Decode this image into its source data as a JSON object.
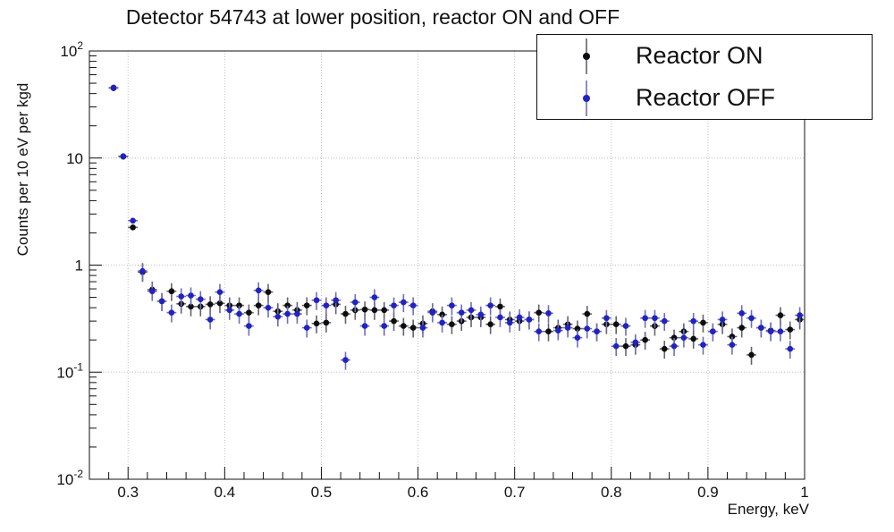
{
  "title": "Detector 54743 at lower position, reactor ON and OFF",
  "chart_data": {
    "type": "scatter",
    "title": "Detector 54743 at lower position, reactor ON and OFF",
    "xlabel": "Energy, keV",
    "ylabel": "Counts per 10 eV per kgd",
    "x_range": [
      0.26,
      1.0
    ],
    "y_range": [
      0.01,
      100
    ],
    "y_scale": "log",
    "grid": "dotted lines at major ticks, both axes",
    "legend_position": "top-right",
    "x_ticks_major": [
      0.3,
      0.4,
      0.5,
      0.6,
      0.7,
      0.8,
      0.9,
      1.0
    ],
    "x_tick_labels": [
      "0.3",
      "0.4",
      "0.5",
      "0.6",
      "0.7",
      "0.8",
      "0.9",
      "1"
    ],
    "x_minor_tick_step": 0.02,
    "y_ticks_major": [
      100,
      10,
      1,
      0.1,
      0.01
    ],
    "y_tick_labels": [
      "10^2",
      "10",
      "1",
      "10^-1",
      "10^-2"
    ],
    "bin_width_kev": 0.01,
    "x": [
      0.285,
      0.295,
      0.305,
      0.315,
      0.325,
      0.335,
      0.345,
      0.355,
      0.365,
      0.375,
      0.385,
      0.395,
      0.405,
      0.415,
      0.425,
      0.435,
      0.445,
      0.455,
      0.465,
      0.475,
      0.485,
      0.495,
      0.505,
      0.515,
      0.525,
      0.535,
      0.545,
      0.555,
      0.565,
      0.575,
      0.585,
      0.595,
      0.605,
      0.615,
      0.625,
      0.635,
      0.645,
      0.655,
      0.665,
      0.675,
      0.685,
      0.695,
      0.705,
      0.715,
      0.725,
      0.735,
      0.745,
      0.755,
      0.765,
      0.775,
      0.785,
      0.795,
      0.805,
      0.815,
      0.825,
      0.835,
      0.845,
      0.855,
      0.865,
      0.875,
      0.885,
      0.895,
      0.905,
      0.915,
      0.925,
      0.935,
      0.945,
      0.955,
      0.965,
      0.975,
      0.985,
      0.995
    ],
    "series": [
      {
        "name": "Reactor ON",
        "marker_color": "#0d0d0d",
        "errorbar_color": "#63636f",
        "values": [
          45,
          10.3,
          2.25,
          0.86,
          0.59,
          0.46,
          0.57,
          0.435,
          0.41,
          0.41,
          0.43,
          0.44,
          0.42,
          0.42,
          0.36,
          0.42,
          0.56,
          0.37,
          0.42,
          0.38,
          0.42,
          0.285,
          0.29,
          0.43,
          0.35,
          0.38,
          0.385,
          0.38,
          0.38,
          0.3,
          0.27,
          0.26,
          0.285,
          0.37,
          0.345,
          0.28,
          0.3,
          0.325,
          0.325,
          0.28,
          0.41,
          0.31,
          0.3,
          0.31,
          0.36,
          0.24,
          0.26,
          0.28,
          0.255,
          0.35,
          0.24,
          0.28,
          0.28,
          0.175,
          0.18,
          0.2,
          0.27,
          0.165,
          0.21,
          0.24,
          0.205,
          0.29,
          0.24,
          0.28,
          0.215,
          0.26,
          0.145,
          0.26,
          0.245,
          0.34,
          0.25,
          0.31
        ]
      },
      {
        "name": "Reactor OFF",
        "marker_color": "#2121c8",
        "errorbar_color": "#6e6eb8",
        "values": [
          45.5,
          10.4,
          2.6,
          0.88,
          0.57,
          0.46,
          0.36,
          0.51,
          0.52,
          0.48,
          0.31,
          0.56,
          0.38,
          0.35,
          0.27,
          0.58,
          0.4,
          0.33,
          0.35,
          0.35,
          0.26,
          0.47,
          0.42,
          0.47,
          0.13,
          0.45,
          0.27,
          0.5,
          0.27,
          0.42,
          0.45,
          0.42,
          0.26,
          0.36,
          0.29,
          0.42,
          0.36,
          0.38,
          0.345,
          0.42,
          0.325,
          0.29,
          0.325,
          0.31,
          0.24,
          0.355,
          0.245,
          0.26,
          0.21,
          0.255,
          0.24,
          0.32,
          0.175,
          0.27,
          0.19,
          0.32,
          0.32,
          0.3,
          0.175,
          0.21,
          0.3,
          0.18,
          0.24,
          0.31,
          0.18,
          0.355,
          0.32,
          0.26,
          0.24,
          0.24,
          0.165,
          0.34
        ]
      }
    ],
    "yerr_relative": {
      "below_1": 0.19,
      "above_1": 0.05
    },
    "notes": "Vertical error bars on every point; small horizontal bars show the 10 eV bin width."
  },
  "colors": {
    "frame": "#111111",
    "grid": "#c0c0c0",
    "text": "#111111",
    "background": "#ffffff"
  }
}
